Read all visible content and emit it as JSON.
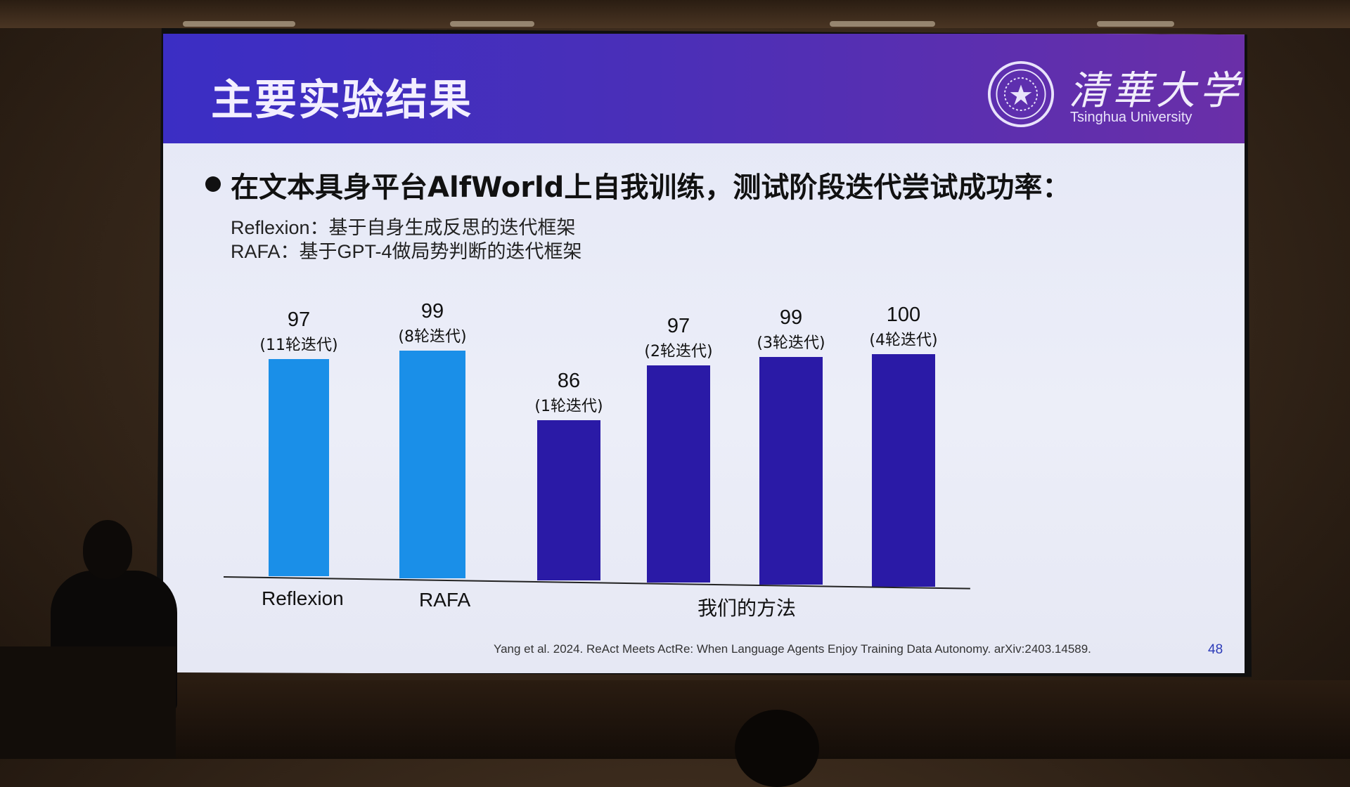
{
  "slide": {
    "title": "主要实验结果",
    "university_cn": "清華大学",
    "university_en": "Tsinghua University",
    "bullet": "在文本具身平台AlfWorld上自我训练，测试阶段迭代尝试成功率：",
    "sub_lines": [
      "Reflexion：基于自身生成反思的迭代框架",
      "RAFA：基于GPT-4做局势判断的迭代框架"
    ],
    "citation": "Yang et al. 2024. ReAct Meets ActRe: When Language Agents Enjoy Training Data Autonomy. arXiv:2403.14589.",
    "page_number": "48"
  },
  "colors": {
    "baseline_bar": "#1a8fe8",
    "ours_bar": "#2a1aa6",
    "header_start": "#3b2ec4",
    "header_end": "#6a2fa8"
  },
  "chart_data": {
    "type": "bar",
    "title": "",
    "xlabel": "",
    "ylabel": "",
    "groups": [
      {
        "label": "Reflexion",
        "bars": [
          0
        ]
      },
      {
        "label": "RAFA",
        "bars": [
          1
        ]
      },
      {
        "label": "我们的方法",
        "bars": [
          2,
          3,
          4,
          5
        ]
      }
    ],
    "bars": [
      {
        "group": "Reflexion",
        "value": 97,
        "note": "(11轮迭代)",
        "kind": "baseline"
      },
      {
        "group": "RAFA",
        "value": 99,
        "note": "(8轮迭代)",
        "kind": "baseline"
      },
      {
        "group": "我们的方法",
        "value": 86,
        "note": "(1轮迭代)",
        "kind": "ours"
      },
      {
        "group": "我们的方法",
        "value": 97,
        "note": "(2轮迭代)",
        "kind": "ours"
      },
      {
        "group": "我们的方法",
        "value": 99,
        "note": "(3轮迭代)",
        "kind": "ours"
      },
      {
        "group": "我们的方法",
        "value": 100,
        "note": "(4轮迭代)",
        "kind": "ours"
      }
    ],
    "value_range": [
      70,
      100
    ],
    "grid": false,
    "legend": "none"
  }
}
